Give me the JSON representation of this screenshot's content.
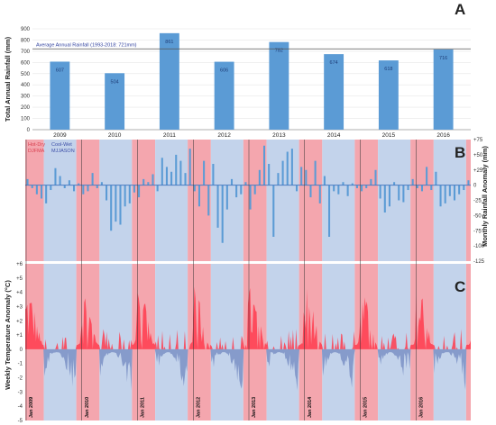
{
  "chart_data": [
    {
      "panel": "A",
      "type": "bar",
      "ylabel": "Total Annual Rainfall (mm)",
      "ylim": [
        0,
        900
      ],
      "yticks": [
        "0",
        "100",
        "200",
        "300",
        "400",
        "500",
        "600",
        "700",
        "800",
        "900"
      ],
      "categories": [
        "2009",
        "2010",
        "2011",
        "2012",
        "2013",
        "2014",
        "2015",
        "2016"
      ],
      "values": [
        607,
        504,
        861,
        606,
        782,
        674,
        618,
        716
      ],
      "bar_labels": [
        "607",
        "504",
        "861",
        "606",
        "782",
        "674",
        "618",
        "716"
      ],
      "reference_line": {
        "value": 721,
        "label": "Average Annual Rainfall (1993-2018: 721mm)"
      },
      "colors": {
        "bar": "#5b9bd5",
        "reference": "#555555"
      }
    },
    {
      "panel": "B",
      "type": "bar",
      "ylabel": "Monthly Rainfall Anomaly (mm)",
      "ylim": [
        -125,
        75
      ],
      "yticks": [
        "+75",
        "+50",
        "+25",
        "0",
        "-25",
        "-50",
        "-75",
        "-100",
        "-125"
      ],
      "legend": {
        "hot_dry": {
          "label": "Hot-Dry",
          "months": "DJFMA"
        },
        "cool_wet": {
          "label": "Cool-Wet",
          "months": "MJJASON"
        }
      },
      "x_domain_months": [
        0,
        96
      ],
      "monthly_values": [
        10,
        -5,
        -15,
        -22,
        -30,
        -8,
        28,
        15,
        -5,
        8,
        -10,
        3,
        -15,
        -10,
        20,
        -5,
        5,
        -25,
        -75,
        -60,
        -65,
        -35,
        -30,
        -12,
        -20,
        10,
        5,
        18,
        -10,
        45,
        30,
        22,
        50,
        40,
        20,
        60,
        -10,
        -35,
        40,
        -50,
        35,
        -70,
        -95,
        -40,
        10,
        -20,
        -15,
        5,
        -40,
        -15,
        25,
        65,
        35,
        -85,
        20,
        40,
        55,
        60,
        -10,
        30,
        25,
        -20,
        40,
        -30,
        15,
        -85,
        -10,
        -15,
        5,
        -18,
        3,
        -5,
        -10,
        -5,
        10,
        25,
        -22,
        -45,
        -35,
        5,
        -25,
        -28,
        -8,
        10,
        -5,
        -10,
        30,
        -8,
        22,
        -35,
        -30,
        -18,
        -25,
        -15,
        -8,
        8
      ],
      "colors": {
        "hot": "#f4a6ae",
        "cool": "#c3d3eb",
        "bar": "#5b9bd5",
        "zero": "#4a7cc2"
      }
    },
    {
      "panel": "C",
      "type": "area",
      "ylabel": "Weekly Temperature Anomaly (°C)",
      "ylim": [
        -5,
        6
      ],
      "yticks": [
        "+6",
        "+5",
        "+4",
        "+3",
        "+2",
        "+1",
        "0",
        "-1",
        "-2",
        "-3",
        "-4",
        "-5"
      ],
      "x_ticks": [
        "Jan 2009",
        "Jan 2010",
        "Jan 2011",
        "Jan 2012",
        "Jan 2013",
        "Jan 2014",
        "Jan 2015",
        "Jan 2016"
      ],
      "x_domain_years": [
        2009,
        2017
      ],
      "series_note": "weekly values; hot-dry season anomalies positive, cool-wet season anomalies negative",
      "colors": {
        "positive": "#ff3b4e",
        "negative": "#7f95c8",
        "hot": "#f4a6ae",
        "cool": "#c3d3eb"
      }
    }
  ]
}
